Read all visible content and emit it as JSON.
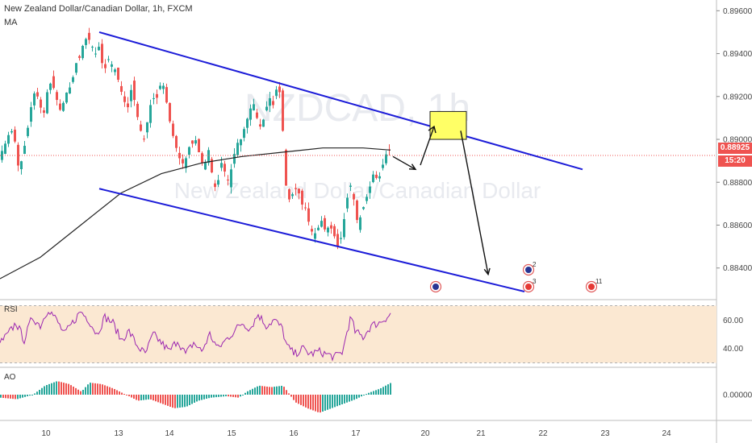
{
  "header": {
    "title": "New Zealand Dollar/Canadian Dollar, 1h, FXCM",
    "indicator": "MA"
  },
  "watermark": {
    "symbol": "NZDCAD, 1h",
    "name": "New Zealand Dollar/Canadian Dollar"
  },
  "price_axis": {
    "ticks": [
      "0.89600",
      "0.89400",
      "0.89200",
      "0.89000",
      "0.88800",
      "0.88600",
      "0.88400"
    ],
    "current_price": "0.88925",
    "countdown": "15:20"
  },
  "time_axis": {
    "ticks": [
      "10",
      "13",
      "14",
      "15",
      "16",
      "17",
      "20",
      "21",
      "22",
      "23",
      "24"
    ]
  },
  "rsi": {
    "label": "RSI",
    "ticks": [
      "60.00",
      "40.00"
    ]
  },
  "ao": {
    "label": "AO",
    "ticks": [
      "0.00000"
    ]
  },
  "events": [
    {
      "icon": "nz-flag-icon",
      "label": "2"
    },
    {
      "icon": "ca-flag-icon",
      "label": "3"
    },
    {
      "icon": "nz-flag-icon",
      "label": ""
    },
    {
      "icon": "ca-flag-icon",
      "label": "11"
    }
  ],
  "colors": {
    "up": "#26a69a",
    "down": "#ef5350",
    "channel": "#1c1cd8",
    "ma": "#222222",
    "price_tag": "#ef5350",
    "highlight_box": "#ffff66",
    "rsi_band": "#fbe8d2",
    "rsi_line": "#9c27b0"
  },
  "chart_data": {
    "type": "candlestick",
    "symbol": "NZDCAD",
    "timeframe": "1h",
    "ylim": [
      0.8826,
      0.8962
    ],
    "price_path": [
      [
        0,
        0.8893
      ],
      [
        5,
        0.8895
      ],
      [
        10,
        0.89
      ],
      [
        15,
        0.8905
      ],
      [
        20,
        0.8899
      ],
      [
        25,
        0.8885
      ],
      [
        30,
        0.8893
      ],
      [
        35,
        0.8903
      ],
      [
        40,
        0.8915
      ],
      [
        45,
        0.8923
      ],
      [
        50,
        0.8918
      ],
      [
        55,
        0.891
      ],
      [
        60,
        0.8922
      ],
      [
        65,
        0.8927
      ],
      [
        70,
        0.8922
      ],
      [
        75,
        0.8913
      ],
      [
        80,
        0.8917
      ],
      [
        85,
        0.8923
      ],
      [
        90,
        0.8925
      ],
      [
        95,
        0.8935
      ],
      [
        100,
        0.8938
      ],
      [
        105,
        0.8945
      ],
      [
        110,
        0.8948
      ],
      [
        115,
        0.8944
      ],
      [
        120,
        0.894
      ],
      [
        125,
        0.8944
      ],
      [
        130,
        0.893
      ],
      [
        135,
        0.8938
      ],
      [
        140,
        0.8935
      ],
      [
        145,
        0.8932
      ],
      [
        150,
        0.8925
      ],
      [
        155,
        0.8918
      ],
      [
        160,
        0.8915
      ],
      [
        165,
        0.8925
      ],
      [
        170,
        0.8914
      ],
      [
        175,
        0.8905
      ],
      [
        180,
        0.89
      ],
      [
        185,
        0.891
      ],
      [
        190,
        0.892
      ],
      [
        195,
        0.8918
      ],
      [
        200,
        0.8925
      ],
      [
        205,
        0.8925
      ],
      [
        210,
        0.8912
      ],
      [
        215,
        0.8903
      ],
      [
        220,
        0.8896
      ],
      [
        225,
        0.889
      ],
      [
        230,
        0.8888
      ],
      [
        235,
        0.8896
      ],
      [
        240,
        0.8898
      ],
      [
        245,
        0.89
      ],
      [
        250,
        0.889
      ],
      [
        255,
        0.8888
      ],
      [
        260,
        0.8895
      ],
      [
        265,
        0.8882
      ],
      [
        270,
        0.8875
      ],
      [
        275,
        0.889
      ],
      [
        280,
        0.8885
      ],
      [
        285,
        0.888
      ],
      [
        290,
        0.889
      ],
      [
        295,
        0.8898
      ],
      [
        300,
        0.89
      ],
      [
        305,
        0.8906
      ],
      [
        310,
        0.8912
      ],
      [
        315,
        0.8918
      ],
      [
        320,
        0.891
      ],
      [
        325,
        0.8905
      ],
      [
        330,
        0.8912
      ],
      [
        335,
        0.892
      ],
      [
        340,
        0.8916
      ],
      [
        345,
        0.8925
      ],
      [
        350,
        0.892
      ],
      [
        355,
        0.888
      ],
      [
        360,
        0.8872
      ],
      [
        365,
        0.8875
      ],
      [
        370,
        0.8878
      ],
      [
        375,
        0.887
      ],
      [
        380,
        0.8868
      ],
      [
        385,
        0.886
      ],
      [
        390,
        0.8855
      ],
      [
        395,
        0.8858
      ],
      [
        400,
        0.8862
      ],
      [
        405,
        0.8857
      ],
      [
        410,
        0.886
      ],
      [
        415,
        0.8856
      ],
      [
        420,
        0.885
      ],
      [
        425,
        0.8855
      ],
      [
        430,
        0.8868
      ],
      [
        435,
        0.888
      ],
      [
        440,
        0.8872
      ],
      [
        445,
        0.886
      ],
      [
        450,
        0.8866
      ],
      [
        455,
        0.8872
      ],
      [
        460,
        0.8878
      ],
      [
        465,
        0.8885
      ],
      [
        470,
        0.888
      ],
      [
        475,
        0.8887
      ],
      [
        480,
        0.8893
      ],
      [
        484,
        0.8895
      ]
    ],
    "moving_average": [
      [
        0,
        0.8835
      ],
      [
        50,
        0.8845
      ],
      [
        100,
        0.886
      ],
      [
        150,
        0.8875
      ],
      [
        200,
        0.8884
      ],
      [
        250,
        0.8889
      ],
      [
        300,
        0.8892
      ],
      [
        350,
        0.8894
      ],
      [
        400,
        0.8896
      ],
      [
        450,
        0.8896
      ],
      [
        484,
        0.8895
      ]
    ],
    "channel_upper": [
      [
        123,
        0.895
      ],
      [
        722,
        0.8886
      ]
    ],
    "channel_lower": [
      [
        123,
        0.8877
      ],
      [
        650,
        0.8829
      ]
    ],
    "projection_path": [
      [
        487,
        0.8892
      ],
      [
        515,
        0.8886
      ],
      [
        538,
        0.8906
      ],
      [
        571,
        0.8904
      ],
      [
        605,
        0.8837
      ]
    ],
    "highlight_box": {
      "x1": 533,
      "x2": 578,
      "y_top": 0.8913,
      "y_bottom": 0.89
    },
    "current_price": 0.88925,
    "rsi": {
      "ylim": [
        28,
        72
      ],
      "band": [
        30,
        70
      ],
      "path": [
        [
          0,
          44
        ],
        [
          10,
          50
        ],
        [
          20,
          58
        ],
        [
          30,
          46
        ],
        [
          40,
          62
        ],
        [
          50,
          56
        ],
        [
          60,
          68
        ],
        [
          70,
          60
        ],
        [
          80,
          50
        ],
        [
          90,
          58
        ],
        [
          100,
          66
        ],
        [
          110,
          60
        ],
        [
          120,
          50
        ],
        [
          130,
          62
        ],
        [
          140,
          58
        ],
        [
          150,
          46
        ],
        [
          160,
          52
        ],
        [
          170,
          42
        ],
        [
          180,
          36
        ],
        [
          190,
          50
        ],
        [
          200,
          44
        ],
        [
          210,
          38
        ],
        [
          220,
          46
        ],
        [
          230,
          36
        ],
        [
          240,
          44
        ],
        [
          250,
          38
        ],
        [
          260,
          50
        ],
        [
          270,
          40
        ],
        [
          280,
          46
        ],
        [
          290,
          52
        ],
        [
          300,
          58
        ],
        [
          310,
          54
        ],
        [
          320,
          64
        ],
        [
          330,
          56
        ],
        [
          340,
          60
        ],
        [
          350,
          54
        ],
        [
          355,
          42
        ],
        [
          365,
          36
        ],
        [
          375,
          40
        ],
        [
          385,
          36
        ],
        [
          395,
          38
        ],
        [
          405,
          36
        ],
        [
          415,
          34
        ],
        [
          425,
          38
        ],
        [
          430,
          52
        ],
        [
          435,
          62
        ],
        [
          440,
          52
        ],
        [
          450,
          48
        ],
        [
          460,
          56
        ],
        [
          470,
          58
        ],
        [
          484,
          64
        ]
      ]
    },
    "ao": {
      "ylim": [
        -0.0016,
        0.0016
      ],
      "path": [
        [
          0,
          -0.0002
        ],
        [
          20,
          -0.0003
        ],
        [
          40,
          0.0
        ],
        [
          55,
          0.0006
        ],
        [
          70,
          0.0009
        ],
        [
          85,
          0.0007
        ],
        [
          100,
          0.0002
        ],
        [
          110,
          0.0008
        ],
        [
          125,
          0.0007
        ],
        [
          140,
          0.0004
        ],
        [
          155,
          0.0
        ],
        [
          170,
          -0.0004
        ],
        [
          185,
          -0.0003
        ],
        [
          200,
          -0.0006
        ],
        [
          215,
          -0.0009
        ],
        [
          230,
          -0.0008
        ],
        [
          245,
          -0.0004
        ],
        [
          260,
          -0.0002
        ],
        [
          280,
          -0.0001
        ],
        [
          295,
          -0.0002
        ],
        [
          305,
          0.0002
        ],
        [
          320,
          0.0006
        ],
        [
          335,
          0.0005
        ],
        [
          350,
          0.0006
        ],
        [
          365,
          -0.0005
        ],
        [
          380,
          -0.0009
        ],
        [
          395,
          -0.0012
        ],
        [
          410,
          -0.0009
        ],
        [
          425,
          -0.0006
        ],
        [
          440,
          -0.0003
        ],
        [
          455,
          0.0001
        ],
        [
          470,
          0.0004
        ],
        [
          484,
          0.0008
        ]
      ]
    }
  }
}
